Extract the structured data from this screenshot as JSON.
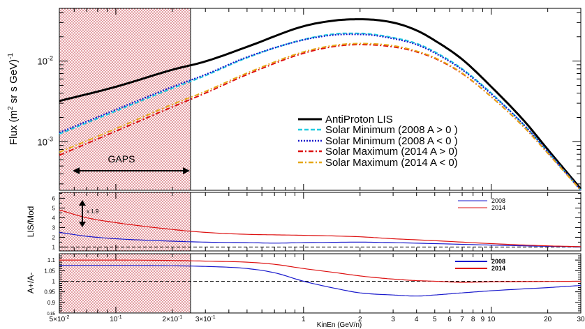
{
  "chart_data": [
    {
      "type": "line",
      "panel": "flux",
      "ylabel_main": "Flux (m",
      "ylabel_sup1": "2",
      "ylabel_mid": " sr s GeV)",
      "ylabel_sup2": "-1",
      "xscale": "log",
      "yscale": "log",
      "xlim": [
        0.05,
        30
      ],
      "ylim": [
        0.00025,
        0.045
      ],
      "ytick_labels": [
        {
          "value": 0.01,
          "base": "10",
          "exp": "-2"
        },
        {
          "value": 0.001,
          "base": "10",
          "exp": "-3"
        }
      ],
      "region": {
        "label": "GAPS",
        "x": [
          0.05,
          0.25
        ],
        "color": "#c22d3a"
      },
      "legend_position": "bottom-right",
      "series": [
        {
          "name": "AntiProton LIS",
          "color": "#000000",
          "dash": "solid",
          "x": [
            0.05,
            0.1,
            0.2,
            0.3,
            0.5,
            1,
            1.5,
            2,
            3,
            4,
            5,
            7,
            10,
            15,
            20,
            30
          ],
          "y": [
            0.0032,
            0.0048,
            0.0078,
            0.0099,
            0.015,
            0.027,
            0.032,
            0.033,
            0.03,
            0.024,
            0.018,
            0.0105,
            0.0048,
            0.0018,
            0.0008,
            0.00026
          ]
        },
        {
          "name": "Solar Minimum (2008 A > 0 )",
          "color": "#22cce0",
          "dash": "dashed",
          "x": [
            0.05,
            0.1,
            0.2,
            0.3,
            0.5,
            1,
            1.5,
            2,
            3,
            4,
            5,
            7,
            10,
            15,
            20,
            30
          ],
          "y": [
            0.00125,
            0.0024,
            0.0046,
            0.0066,
            0.011,
            0.0185,
            0.0218,
            0.022,
            0.0195,
            0.0165,
            0.013,
            0.008,
            0.004,
            0.0016,
            0.00075,
            0.00025
          ]
        },
        {
          "name": "Solar Minimum (2008 A < 0 )",
          "color": "#1a1acc",
          "dash": "dotted",
          "x": [
            0.05,
            0.1,
            0.2,
            0.3,
            0.5,
            1,
            1.5,
            2,
            3,
            4,
            5,
            7,
            10,
            15,
            20,
            30
          ],
          "y": [
            0.0013,
            0.0025,
            0.0048,
            0.0068,
            0.0112,
            0.0183,
            0.0212,
            0.0214,
            0.019,
            0.016,
            0.0126,
            0.0078,
            0.0039,
            0.0016,
            0.00075,
            0.00025
          ]
        },
        {
          "name": "Solar Maximum (2014 A > 0)",
          "color": "#dd1111",
          "dash": "dashdot",
          "x": [
            0.05,
            0.1,
            0.2,
            0.3,
            0.5,
            1,
            1.5,
            2,
            3,
            4,
            5,
            7,
            10,
            15,
            20,
            30
          ],
          "y": [
            0.00068,
            0.00135,
            0.0027,
            0.004,
            0.0068,
            0.0125,
            0.0153,
            0.016,
            0.015,
            0.013,
            0.0108,
            0.007,
            0.0036,
            0.0015,
            0.00072,
            0.00025
          ]
        },
        {
          "name": "Solar Maximum (2014 A < 0)",
          "color": "#e6a817",
          "dash": "dashdot",
          "x": [
            0.05,
            0.1,
            0.2,
            0.3,
            0.5,
            1,
            1.5,
            2,
            3,
            4,
            5,
            7,
            10,
            15,
            20,
            30
          ],
          "y": [
            0.00074,
            0.00145,
            0.0029,
            0.0042,
            0.0071,
            0.013,
            0.0158,
            0.0165,
            0.0155,
            0.0133,
            0.011,
            0.0071,
            0.0036,
            0.0015,
            0.00072,
            0.00025
          ]
        }
      ]
    },
    {
      "type": "line",
      "panel": "ratio",
      "ylabel": "LIS/Mod",
      "xscale": "log",
      "ylim": [
        0.6,
        6.6
      ],
      "yticks": [
        1,
        2,
        3,
        4,
        5,
        6
      ],
      "reference_line": 1,
      "annotation": "x 1.9",
      "legend_position": "top-right",
      "series": [
        {
          "name": "2008",
          "color": "#1a1acc",
          "x": [
            0.05,
            0.07,
            0.1,
            0.2,
            0.3,
            0.5,
            0.7,
            1,
            2,
            3,
            5,
            10,
            20,
            30
          ],
          "y": [
            2.5,
            2.1,
            1.85,
            1.6,
            1.5,
            1.45,
            1.4,
            1.45,
            1.5,
            1.45,
            1.35,
            1.2,
            1.07,
            1.02
          ]
        },
        {
          "name": "2014",
          "color": "#dd1111",
          "x": [
            0.05,
            0.07,
            0.1,
            0.2,
            0.3,
            0.5,
            0.7,
            1,
            2,
            3,
            5,
            10,
            20,
            30
          ],
          "y": [
            4.8,
            4.0,
            3.5,
            2.8,
            2.5,
            2.3,
            2.25,
            2.2,
            2.05,
            1.85,
            1.65,
            1.35,
            1.12,
            1.04
          ]
        }
      ]
    },
    {
      "type": "line",
      "panel": "charge-sign",
      "ylabel": "A+/A-",
      "xlabel": "KinEn (GeV/n)",
      "xscale": "log",
      "ylim": [
        0.85,
        1.13
      ],
      "ytick_labels": [
        "1.1",
        "1.05",
        "1",
        "0.95",
        "0.9",
        "0.85"
      ],
      "yticks": [
        1.1,
        1.05,
        1.0,
        0.95,
        0.9,
        0.85
      ],
      "reference_line": 1,
      "legend_position": "top-right",
      "series": [
        {
          "name": "2008",
          "color": "#1a1acc",
          "x": [
            0.05,
            0.1,
            0.2,
            0.3,
            0.5,
            0.7,
            1,
            1.5,
            2,
            3,
            4,
            5,
            7,
            10,
            20,
            30
          ],
          "y": [
            1.075,
            1.075,
            1.073,
            1.07,
            1.06,
            1.04,
            1.0,
            0.965,
            0.945,
            0.935,
            0.93,
            0.935,
            0.945,
            0.955,
            0.97,
            0.98
          ]
        },
        {
          "name": "2014",
          "color": "#dd1111",
          "x": [
            0.05,
            0.1,
            0.2,
            0.3,
            0.5,
            0.7,
            1,
            1.5,
            2,
            3,
            4,
            5,
            7,
            10,
            20,
            30
          ],
          "y": [
            1.1,
            1.1,
            1.098,
            1.095,
            1.09,
            1.08,
            1.06,
            1.04,
            1.025,
            1.01,
            1.003,
            1.0,
            0.995,
            0.997,
            0.999,
            1.0
          ]
        }
      ]
    }
  ],
  "xaxis": {
    "tick_labels": [
      {
        "value": 0.05,
        "base": "5×10",
        "exp": "-2"
      },
      {
        "value": 0.1,
        "base": "10",
        "exp": "-1"
      },
      {
        "value": 0.2,
        "base": "2×10",
        "exp": "-1"
      },
      {
        "value": 0.3,
        "base": "3×10",
        "exp": "-1"
      },
      {
        "value": 1,
        "base": "1",
        "exp": ""
      },
      {
        "value": 2,
        "base": "2",
        "exp": ""
      },
      {
        "value": 3,
        "base": "3",
        "exp": ""
      },
      {
        "value": 4,
        "base": "4",
        "exp": ""
      },
      {
        "value": 5,
        "base": "5",
        "exp": ""
      },
      {
        "value": 6,
        "base": "6",
        "exp": ""
      },
      {
        "value": 7,
        "base": "7",
        "exp": ""
      },
      {
        "value": 8,
        "base": "8",
        "exp": ""
      },
      {
        "value": 9,
        "base": "9",
        "exp": ""
      },
      {
        "value": 10,
        "base": "10",
        "exp": ""
      },
      {
        "value": 20,
        "base": "20",
        "exp": ""
      },
      {
        "value": 30,
        "base": "30",
        "exp": ""
      }
    ]
  }
}
